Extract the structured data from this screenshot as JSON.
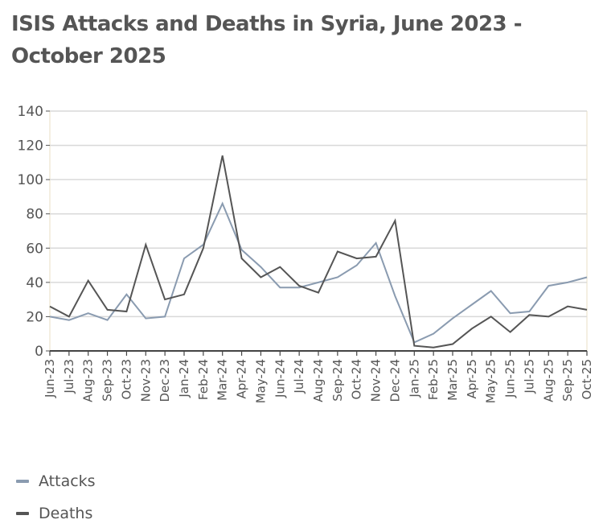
{
  "chart_data": {
    "type": "line",
    "title": "ISIS Attacks and Deaths in Syria, June 2023 - October 2025",
    "xlabel": "",
    "ylabel": "",
    "ylim": [
      0,
      140
    ],
    "yticks": [
      0,
      20,
      40,
      60,
      80,
      100,
      120,
      140
    ],
    "grid": true,
    "legend_position": "bottom-left",
    "categories": [
      "Jun-23",
      "Jul-23",
      "Aug-23",
      "Sep-23",
      "Oct-23",
      "Nov-23",
      "Dec-23",
      "Jan-24",
      "Feb-24",
      "Mar-24",
      "Apr-24",
      "May-24",
      "Jun-24",
      "Jul-24",
      "Aug-24",
      "Sep-24",
      "Oct-24",
      "Nov-24",
      "Dec-24",
      "Jan-25",
      "Feb-25",
      "Mar-25",
      "Apr-25",
      "May-25",
      "Jun-25",
      "Jul-25",
      "Aug-25",
      "Sep-25",
      "Oct-25"
    ],
    "series": [
      {
        "name": "Attacks",
        "color": "#8a9bb0",
        "values": [
          20,
          18,
          22,
          18,
          33,
          19,
          20,
          54,
          62,
          86,
          59,
          49,
          37,
          37,
          40,
          43,
          50,
          63,
          32,
          5,
          10,
          19,
          27,
          35,
          22,
          23,
          38,
          40,
          43
        ]
      },
      {
        "name": "Deaths",
        "color": "#555555",
        "values": [
          26,
          20,
          41,
          24,
          23,
          62,
          30,
          33,
          60,
          114,
          54,
          43,
          49,
          38,
          34,
          58,
          54,
          55,
          76,
          3,
          2,
          4,
          13,
          20,
          11,
          21,
          20,
          26,
          24
        ]
      }
    ]
  }
}
